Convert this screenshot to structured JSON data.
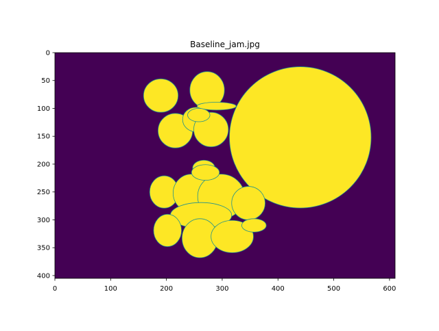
{
  "figure": {
    "title": "Baseline_jam.jpg"
  },
  "chart_data": {
    "type": "heatmap",
    "title": "Baseline_jam.jpg",
    "colormap": "viridis",
    "colors": {
      "background": "#440154",
      "foreground": "#fde725",
      "edge": "#21918c"
    },
    "xlim": [
      0,
      610
    ],
    "ylim": [
      405,
      0
    ],
    "x_ticks": [
      0,
      100,
      200,
      300,
      400,
      500,
      600
    ],
    "y_ticks": [
      0,
      50,
      100,
      150,
      200,
      250,
      300,
      350,
      400
    ],
    "x_tick_labels": [
      "0",
      "100",
      "200",
      "300",
      "400",
      "500",
      "600"
    ],
    "y_tick_labels": [
      "0",
      "50",
      "100",
      "150",
      "200",
      "250",
      "300",
      "350",
      "400"
    ],
    "grid": false,
    "regions": [
      {
        "name": "large-disk",
        "shape": "circle",
        "cx": 440,
        "cy": 152,
        "r": 127
      },
      {
        "name": "blob-1",
        "shape": "ellipse",
        "cx": 190,
        "cy": 77,
        "rx": 31,
        "ry": 30
      },
      {
        "name": "blob-2",
        "shape": "ellipse",
        "cx": 273,
        "cy": 67,
        "rx": 31,
        "ry": 33
      },
      {
        "name": "blob-3",
        "shape": "ellipse",
        "cx": 216,
        "cy": 140,
        "rx": 31,
        "ry": 31
      },
      {
        "name": "blob-4",
        "shape": "ellipse",
        "cx": 253,
        "cy": 120,
        "rx": 24,
        "ry": 22
      },
      {
        "name": "blob-5",
        "shape": "ellipse",
        "cx": 280,
        "cy": 138,
        "rx": 31,
        "ry": 31
      },
      {
        "name": "blob-6",
        "shape": "ellipse",
        "cx": 290,
        "cy": 96,
        "rx": 35,
        "ry": 7
      },
      {
        "name": "blob-7",
        "shape": "ellipse",
        "cx": 258,
        "cy": 112,
        "rx": 20,
        "ry": 12
      },
      {
        "name": "blob-8",
        "shape": "ellipse",
        "cx": 267,
        "cy": 207,
        "rx": 20,
        "ry": 14
      },
      {
        "name": "blob-9",
        "shape": "ellipse",
        "cx": 196,
        "cy": 250,
        "rx": 26,
        "ry": 29
      },
      {
        "name": "blob-10",
        "shape": "ellipse",
        "cx": 245,
        "cy": 252,
        "rx": 33,
        "ry": 34
      },
      {
        "name": "blob-11",
        "shape": "ellipse",
        "cx": 298,
        "cy": 258,
        "rx": 42,
        "ry": 40
      },
      {
        "name": "blob-12",
        "shape": "ellipse",
        "cx": 347,
        "cy": 270,
        "rx": 30,
        "ry": 30
      },
      {
        "name": "blob-13",
        "shape": "ellipse",
        "cx": 270,
        "cy": 215,
        "rx": 25,
        "ry": 14
      },
      {
        "name": "blob-14",
        "shape": "ellipse",
        "cx": 262,
        "cy": 292,
        "rx": 55,
        "ry": 23
      },
      {
        "name": "blob-15",
        "shape": "ellipse",
        "cx": 202,
        "cy": 319,
        "rx": 25,
        "ry": 29
      },
      {
        "name": "blob-16",
        "shape": "ellipse",
        "cx": 260,
        "cy": 333,
        "rx": 32,
        "ry": 35
      },
      {
        "name": "blob-17",
        "shape": "ellipse",
        "cx": 318,
        "cy": 330,
        "rx": 38,
        "ry": 29
      },
      {
        "name": "blob-18",
        "shape": "ellipse",
        "cx": 357,
        "cy": 310,
        "rx": 22,
        "ry": 12
      }
    ]
  }
}
